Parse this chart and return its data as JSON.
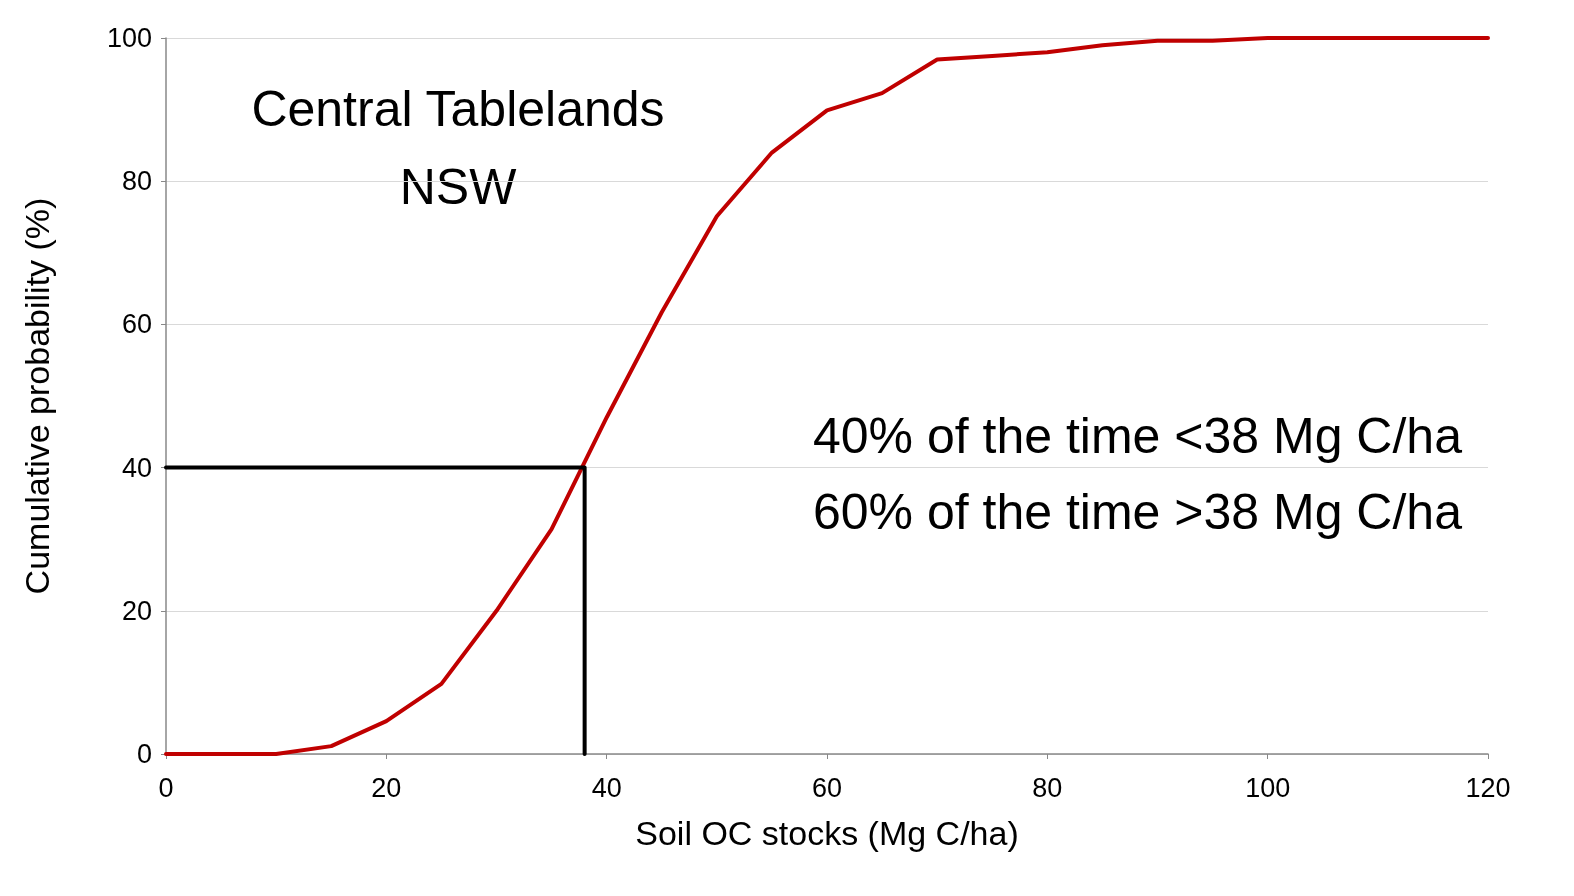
{
  "chart_data": {
    "type": "line",
    "xlabel": "Soil OC stocks (Mg C/ha)",
    "ylabel": "Cumulative probability (%)",
    "annotations": [
      "Central Tablelands\nNSW",
      "40% of the time <38 Mg C/ha\n60% of the time >38 Mg C/ha"
    ],
    "series": [
      {
        "color": "#c00000",
        "x": [
          0,
          5,
          10,
          15,
          20,
          25,
          30,
          35,
          40,
          45,
          50,
          55,
          60,
          65,
          70,
          75,
          80,
          85,
          90,
          95,
          100,
          105,
          110,
          115,
          120
        ],
        "values": [
          0,
          0,
          0,
          1.1,
          4.6,
          9.8,
          20,
          31.4,
          47,
          61.7,
          75.1,
          84,
          89.9,
          92.3,
          97,
          97.5,
          98,
          99,
          99.6,
          99.6,
          100,
          100,
          100,
          100,
          100
        ]
      },
      {
        "color": "#000000",
        "x": [
          0,
          38,
          38
        ],
        "values": [
          40,
          40,
          0
        ]
      }
    ],
    "xlim": [
      0,
      120
    ],
    "xticks": [
      0,
      20,
      40,
      60,
      80,
      100,
      120
    ],
    "ylim": [
      0,
      100
    ],
    "yticks": [
      0,
      20,
      40,
      60,
      80,
      100
    ],
    "grid": "y",
    "marker": "none",
    "line_style": "solid"
  }
}
